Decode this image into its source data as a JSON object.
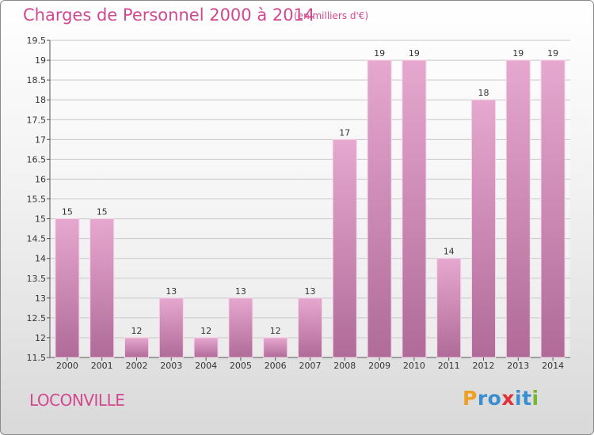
{
  "header": {
    "title": "Charges de Personnel 2000 à 2014",
    "subtitle": "(en milliers d'€)"
  },
  "footer": {
    "city": "LOCONVILLE",
    "logo_letters": [
      {
        "ch": "P",
        "color": "#f0a020"
      },
      {
        "ch": "r",
        "color": "#3a8fd0"
      },
      {
        "ch": "o",
        "color": "#3a8fd0"
      },
      {
        "ch": "x",
        "color": "#e0303a"
      },
      {
        "ch": "i",
        "color": "#3a8fd0"
      },
      {
        "ch": "t",
        "color": "#3a8fd0"
      },
      {
        "ch": "i",
        "color": "#78b830"
      }
    ]
  },
  "colors": {
    "title": "#d2488f",
    "bar_top": "#e6a8cf",
    "bar_bottom": "#b06b98",
    "grid": "#c8c8c8"
  },
  "chart_data": {
    "type": "bar",
    "title": "Charges de Personnel 2000 à 2014",
    "subtitle": "(en milliers d'€)",
    "xlabel": "",
    "ylabel": "",
    "categories": [
      "2000",
      "2001",
      "2002",
      "2003",
      "2004",
      "2005",
      "2006",
      "2007",
      "2008",
      "2009",
      "2010",
      "2011",
      "2012",
      "2013",
      "2014"
    ],
    "values": [
      15,
      15,
      12,
      13,
      12,
      13,
      12,
      13,
      17,
      19,
      19,
      14,
      18,
      19,
      19
    ],
    "data_labels": [
      "15",
      "15",
      "12",
      "13",
      "12",
      "13",
      "12",
      "13",
      "17",
      "19",
      "19",
      "14",
      "18",
      "19",
      "19"
    ],
    "ylim": [
      11.5,
      19.5
    ],
    "yticks": [
      "11.5",
      "12",
      "12.5",
      "13",
      "13.5",
      "14",
      "14.5",
      "15",
      "15.5",
      "16",
      "16.5",
      "17",
      "17.5",
      "18",
      "18.5",
      "19",
      "19.5"
    ],
    "grid": true,
    "legend": "none"
  }
}
